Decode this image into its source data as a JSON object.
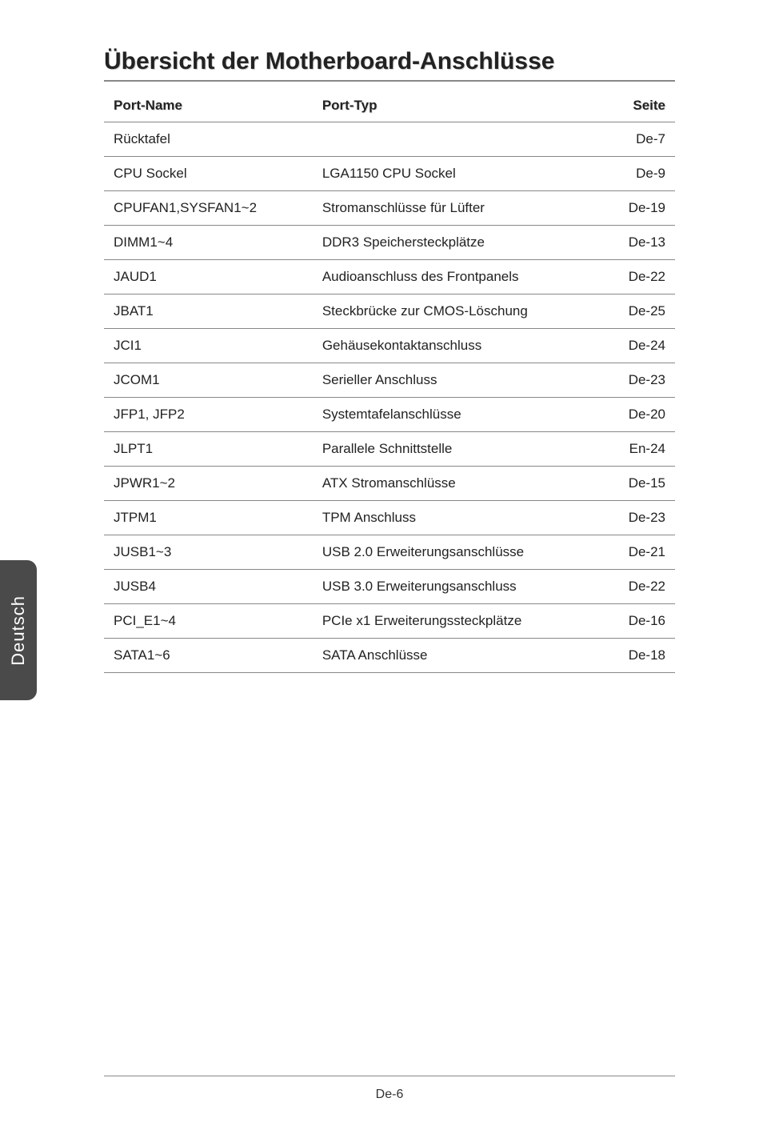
{
  "title": "Übersicht der Motherboard-Anschlüsse",
  "side_tab": "Deutsch",
  "footer": "De-6",
  "headers": {
    "name": "Port-Name",
    "type": "Port-Typ",
    "page": "Seite"
  },
  "rows": [
    {
      "name": "Rücktafel",
      "type": "",
      "page": "De-7"
    },
    {
      "name": "CPU Sockel",
      "type": "LGA1150 CPU Sockel",
      "page": "De-9"
    },
    {
      "name": "CPUFAN1,SYSFAN1~2",
      "type": "Stromanschlüsse für Lüfter",
      "page": "De-19"
    },
    {
      "name": "DIMM1~4",
      "type": "DDR3 Speichersteckplätze",
      "page": "De-13"
    },
    {
      "name": "JAUD1",
      "type": "Audioanschluss des Frontpanels",
      "page": "De-22"
    },
    {
      "name": "JBAT1",
      "type": "Steckbrücke zur CMOS-Löschung",
      "page": "De-25"
    },
    {
      "name": "JCI1",
      "type": "Gehäusekontaktanschluss",
      "page": "De-24"
    },
    {
      "name": "JCOM1",
      "type": "Serieller Anschluss",
      "page": "De-23"
    },
    {
      "name": "JFP1, JFP2",
      "type": "Systemtafelanschlüsse",
      "page": "De-20"
    },
    {
      "name": "JLPT1",
      "type": "Parallele Schnittstelle",
      "page": "En-24"
    },
    {
      "name": "JPWR1~2",
      "type": "ATX Stromanschlüsse",
      "page": "De-15"
    },
    {
      "name": "JTPM1",
      "type": "TPM Anschluss",
      "page": "De-23"
    },
    {
      "name": "JUSB1~3",
      "type": "USB 2.0 Erweiterungsanschlüsse",
      "page": "De-21"
    },
    {
      "name": "JUSB4",
      "type": "USB 3.0 Erweiterungsanschluss",
      "page": "De-22"
    },
    {
      "name": "PCI_E1~4",
      "type": "PCIe x1 Erweiterungssteckplätze",
      "page": "De-16"
    },
    {
      "name": "SATA1~6",
      "type": "SATA Anschlüsse",
      "page": "De-18"
    }
  ]
}
